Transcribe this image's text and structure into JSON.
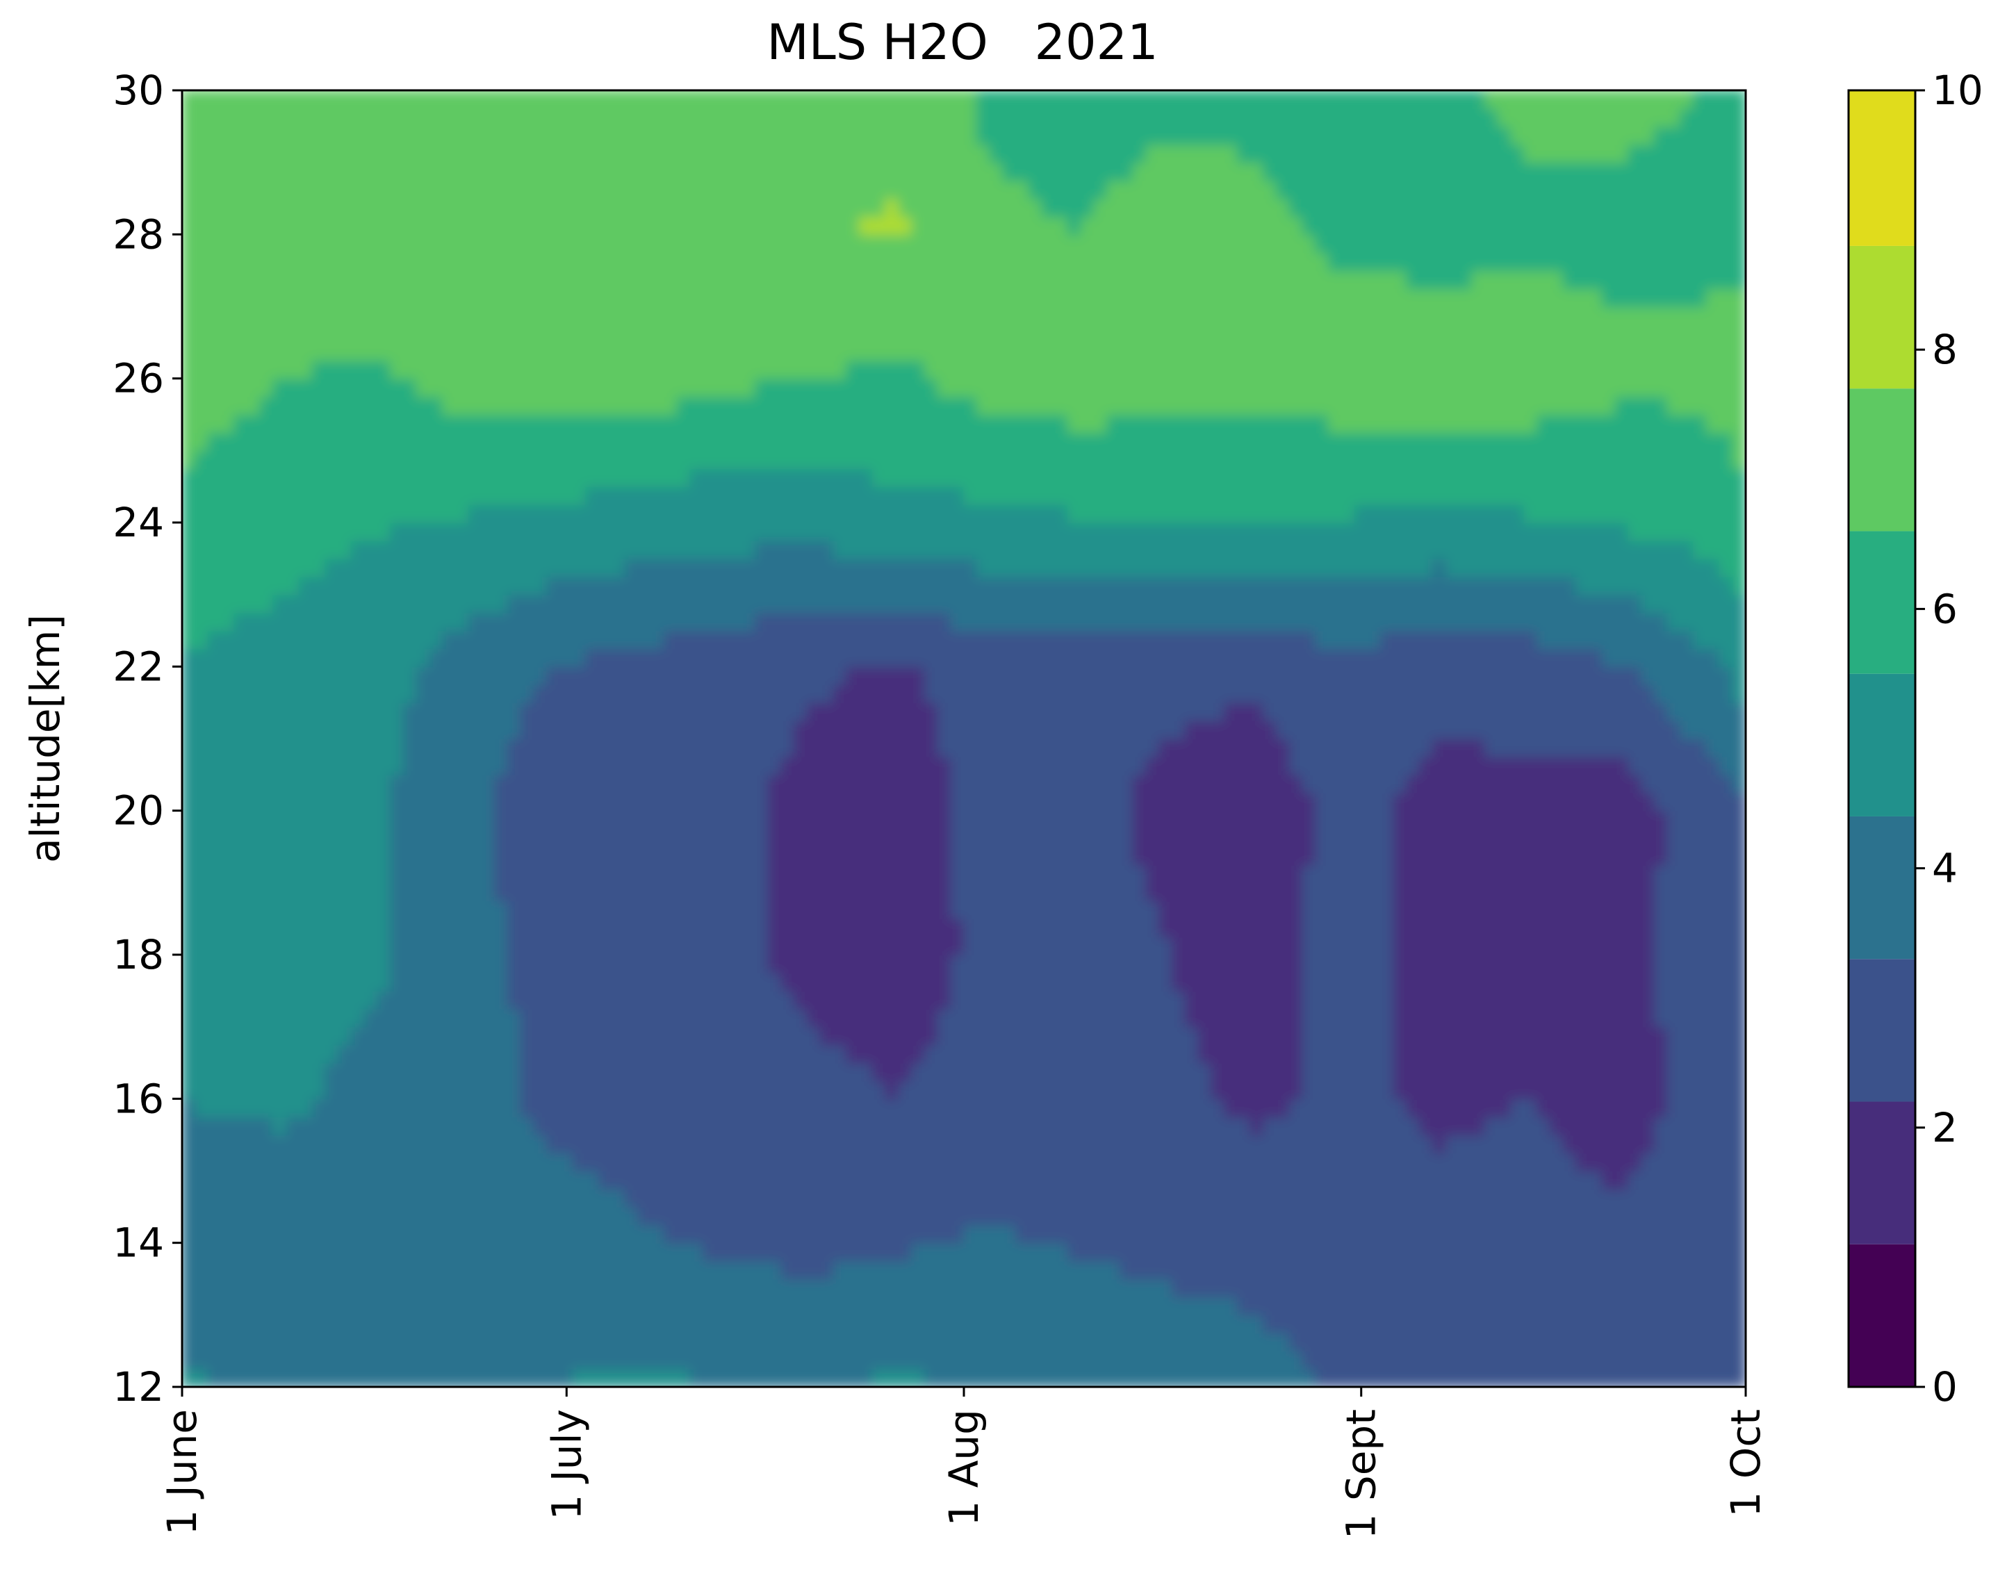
{
  "chart_data": {
    "type": "heatmap",
    "title": "MLS H2O   2021",
    "xlabel": "",
    "ylabel": "altitude[km]",
    "x_ticks": [
      "1 June",
      "1 July",
      "1 Aug",
      "1 Sept",
      "1 Oct"
    ],
    "x_tick_days": [
      0,
      30,
      61,
      92,
      122
    ],
    "x_range_days": [
      0,
      122
    ],
    "ylim": [
      12,
      30
    ],
    "y_ticks": [
      12,
      14,
      16,
      18,
      20,
      22,
      24,
      26,
      28,
      30
    ],
    "colorbar": {
      "range": [
        0,
        10
      ],
      "ticks": [
        0,
        2,
        4,
        6,
        8,
        10
      ],
      "levels": [
        {
          "from": 0,
          "to": 1.1,
          "color": "#440154"
        },
        {
          "from": 1.1,
          "to": 2.2,
          "color": "#472d7b"
        },
        {
          "from": 2.2,
          "to": 3.3,
          "color": "#3b528b"
        },
        {
          "from": 3.3,
          "to": 4.4,
          "color": "#2c728e"
        },
        {
          "from": 4.4,
          "to": 5.5,
          "color": "#21918c"
        },
        {
          "from": 5.5,
          "to": 6.6,
          "color": "#28ae80"
        },
        {
          "from": 6.6,
          "to": 7.7,
          "color": "#5ec962"
        },
        {
          "from": 7.7,
          "to": 8.8,
          "color": "#addc30"
        },
        {
          "from": 8.8,
          "to": 10,
          "color": "#e0dc1c"
        }
      ]
    },
    "grid": false,
    "time_columns_days": [
      0,
      8,
      15,
      22,
      28,
      35,
      42,
      49,
      56,
      63,
      70,
      77,
      84,
      91,
      98,
      105,
      112,
      118,
      122
    ],
    "altitude_rows_km": [
      12,
      14,
      16,
      18,
      20,
      22,
      24,
      26,
      28,
      30
    ],
    "h2o_ppmv_by_altitude": [
      [
        4.5,
        4.2,
        3.8,
        4.0,
        4.4,
        4.6,
        4.4,
        4.2,
        4.6,
        4.2,
        4.4,
        4.0,
        3.6,
        3.2,
        3.0,
        3.2,
        3.0,
        2.8,
        2.8
      ],
      [
        4.0,
        3.6,
        3.4,
        3.6,
        3.6,
        3.4,
        3.2,
        3.0,
        3.2,
        3.4,
        3.2,
        3.0,
        3.0,
        2.8,
        2.6,
        2.6,
        2.4,
        2.6,
        2.8
      ],
      [
        4.4,
        4.6,
        4.0,
        3.6,
        3.2,
        3.0,
        2.8,
        2.4,
        2.2,
        2.6,
        2.8,
        2.4,
        2.0,
        2.4,
        2.0,
        2.2,
        1.8,
        2.4,
        2.6
      ],
      [
        5.2,
        5.2,
        4.6,
        3.8,
        3.0,
        2.6,
        2.4,
        2.0,
        1.8,
        2.4,
        2.6,
        2.2,
        1.8,
        2.6,
        1.8,
        2.2,
        1.8,
        2.6,
        3.0
      ],
      [
        5.2,
        5.2,
        4.6,
        3.6,
        2.6,
        2.4,
        2.6,
        1.8,
        1.6,
        2.6,
        2.4,
        2.0,
        1.6,
        2.6,
        1.8,
        1.8,
        1.6,
        2.6,
        3.2
      ],
      [
        5.4,
        5.2,
        4.8,
        4.0,
        3.4,
        3.0,
        2.8,
        2.4,
        2.0,
        2.8,
        2.6,
        2.4,
        2.4,
        3.0,
        2.6,
        2.8,
        3.2,
        4.0,
        4.8
      ],
      [
        6.2,
        5.8,
        5.6,
        5.4,
        5.2,
        5.0,
        4.8,
        4.8,
        5.2,
        5.2,
        5.4,
        5.4,
        5.4,
        5.4,
        5.2,
        5.4,
        5.6,
        5.8,
        6.4
      ],
      [
        7.2,
        6.6,
        6.4,
        7.0,
        7.2,
        7.2,
        6.8,
        6.6,
        6.4,
        7.0,
        7.2,
        7.0,
        7.0,
        7.2,
        7.4,
        7.2,
        6.8,
        6.8,
        7.0
      ],
      [
        7.4,
        7.4,
        7.6,
        7.4,
        7.4,
        7.4,
        7.4,
        7.6,
        7.8,
        6.8,
        6.6,
        7.0,
        6.8,
        6.4,
        6.2,
        6.4,
        6.4,
        6.4,
        6.4
      ],
      [
        7.4,
        7.6,
        7.6,
        7.6,
        7.4,
        7.4,
        7.4,
        7.4,
        7.4,
        6.4,
        6.2,
        6.4,
        6.4,
        6.2,
        6.4,
        6.8,
        6.8,
        6.6,
        6.6
      ]
    ]
  }
}
